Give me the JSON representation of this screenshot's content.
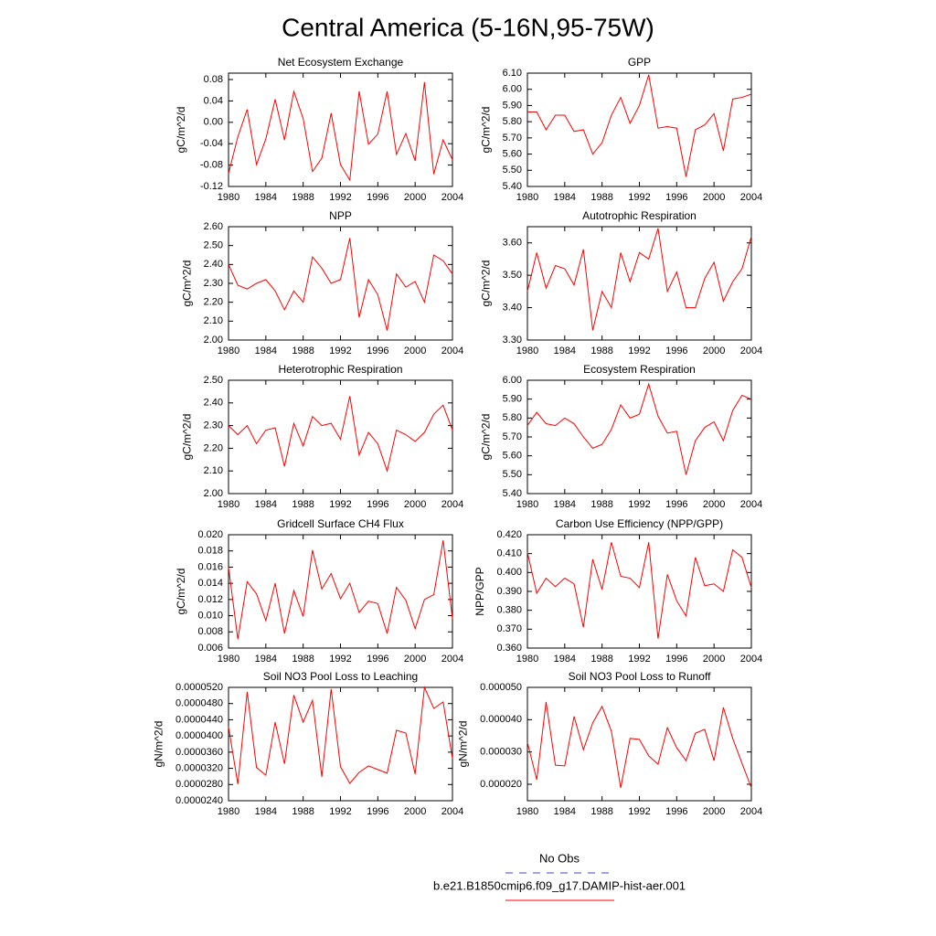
{
  "title": "Central America (5-16N,95-75W)",
  "legend": [
    {
      "name": "No Obs",
      "color": "#4444cc",
      "dashed": true
    },
    {
      "name": "b.e21.B1850cmip6.f09_g17.DAMIP-hist-aer.001",
      "color": "#ff0000",
      "dashed": false
    }
  ],
  "chart_data": [
    {
      "type": "line",
      "title": "Net Ecosystem Exchange",
      "ylabel": "gC/m^2/d",
      "color": "#ff0000",
      "x": [
        1980,
        1981,
        1982,
        1983,
        1984,
        1985,
        1986,
        1987,
        1988,
        1989,
        1990,
        1991,
        1992,
        1993,
        1994,
        1995,
        1996,
        1997,
        1998,
        1999,
        2000,
        2001,
        2002,
        2003,
        2004
      ],
      "values": [
        -0.096,
        -0.027,
        0.024,
        -0.079,
        -0.031,
        0.043,
        -0.033,
        0.058,
        0.007,
        -0.092,
        -0.067,
        0.017,
        -0.079,
        -0.108,
        0.058,
        -0.041,
        -0.022,
        0.058,
        -0.06,
        -0.021,
        -0.072,
        0.075,
        -0.097,
        -0.033,
        -0.07
      ],
      "xlim": [
        1980,
        2004
      ],
      "xticks": [
        1980,
        1984,
        1988,
        1992,
        1996,
        2000,
        2004
      ],
      "ylim": [
        -0.12,
        0.092
      ],
      "yticks": [
        -0.12,
        -0.08,
        -0.04,
        {
          "value": 0,
          "label": "0.00"
        },
        0.04,
        0.08
      ]
    },
    {
      "type": "line",
      "title": "GPP",
      "ylabel": "gC/m^2/d",
      "color": "#ff0000",
      "x": [
        1980,
        1981,
        1982,
        1983,
        1984,
        1985,
        1986,
        1987,
        1988,
        1989,
        1990,
        1991,
        1992,
        1993,
        1994,
        1995,
        1996,
        1997,
        1998,
        1999,
        2000,
        2001,
        2002,
        2003,
        2004
      ],
      "values": [
        5.86,
        5.86,
        5.75,
        5.84,
        5.84,
        5.74,
        5.75,
        5.6,
        5.67,
        5.84,
        5.95,
        5.79,
        5.9,
        6.09,
        5.76,
        5.77,
        5.76,
        5.46,
        5.75,
        5.78,
        5.85,
        5.62,
        5.94,
        5.95,
        5.97
      ],
      "xlim": [
        1980,
        2004
      ],
      "xticks": [
        1980,
        1984,
        1988,
        1992,
        1996,
        2000,
        2004
      ],
      "ylim": [
        5.4,
        6.1
      ],
      "yticks": [
        {
          "value": 5.4,
          "label": "5.40"
        },
        {
          "value": 5.5,
          "label": "5.50"
        },
        {
          "value": 5.6,
          "label": "5.60"
        },
        {
          "value": 5.7,
          "label": "5.70"
        },
        {
          "value": 5.8,
          "label": "5.80"
        },
        {
          "value": 5.9,
          "label": "5.90"
        },
        {
          "value": 6,
          "label": "6.00"
        },
        {
          "value": 6.1,
          "label": "6.10"
        }
      ]
    },
    {
      "type": "line",
      "title": "NPP",
      "ylabel": "gC/m^2/d",
      "color": "#ff0000",
      "x": [
        1980,
        1981,
        1982,
        1983,
        1984,
        1985,
        1986,
        1987,
        1988,
        1989,
        1990,
        1991,
        1992,
        1993,
        1994,
        1995,
        1996,
        1997,
        1998,
        1999,
        2000,
        2001,
        2002,
        2003,
        2004
      ],
      "values": [
        2.4,
        2.29,
        2.27,
        2.3,
        2.32,
        2.26,
        2.16,
        2.26,
        2.2,
        2.44,
        2.38,
        2.3,
        2.32,
        2.54,
        2.12,
        2.32,
        2.24,
        2.05,
        2.35,
        2.28,
        2.31,
        2.2,
        2.45,
        2.42,
        2.35
      ],
      "xlim": [
        1980,
        2004
      ],
      "xticks": [
        1980,
        1984,
        1988,
        1992,
        1996,
        2000,
        2004
      ],
      "ylim": [
        2.0,
        2.6
      ],
      "yticks": [
        {
          "value": 2,
          "label": "2.00"
        },
        {
          "value": 2.1,
          "label": "2.10"
        },
        {
          "value": 2.2,
          "label": "2.20"
        },
        {
          "value": 2.3,
          "label": "2.30"
        },
        {
          "value": 2.4,
          "label": "2.40"
        },
        {
          "value": 2.5,
          "label": "2.50"
        },
        {
          "value": 2.6,
          "label": "2.60"
        }
      ]
    },
    {
      "type": "line",
      "title": "Autotrophic Respiration",
      "ylabel": "gC/m^2/d",
      "color": "#ff0000",
      "x": [
        1980,
        1981,
        1982,
        1983,
        1984,
        1985,
        1986,
        1987,
        1988,
        1989,
        1990,
        1991,
        1992,
        1993,
        1994,
        1995,
        1996,
        1997,
        1998,
        1999,
        2000,
        2001,
        2002,
        2003,
        2004
      ],
      "values": [
        3.45,
        3.57,
        3.46,
        3.53,
        3.52,
        3.47,
        3.58,
        3.33,
        3.45,
        3.4,
        3.57,
        3.48,
        3.57,
        3.55,
        3.645,
        3.45,
        3.51,
        3.4,
        3.4,
        3.49,
        3.54,
        3.42,
        3.48,
        3.52,
        3.62
      ],
      "xlim": [
        1980,
        2004
      ],
      "xticks": [
        1980,
        1984,
        1988,
        1992,
        1996,
        2000,
        2004
      ],
      "ylim": [
        3.3,
        3.65
      ],
      "yticks": [
        {
          "value": 3.3,
          "label": "3.30"
        },
        {
          "value": 3.4,
          "label": "3.40"
        },
        {
          "value": 3.5,
          "label": "3.50"
        },
        {
          "value": 3.6,
          "label": "3.60"
        }
      ]
    },
    {
      "type": "line",
      "title": "Heterotrophic Respiration",
      "ylabel": "gC/m^2/d",
      "color": "#ff0000",
      "x": [
        1980,
        1981,
        1982,
        1983,
        1984,
        1985,
        1986,
        1987,
        1988,
        1989,
        1990,
        1991,
        1992,
        1993,
        1994,
        1995,
        1996,
        1997,
        1998,
        1999,
        2000,
        2001,
        2002,
        2003,
        2004
      ],
      "values": [
        2.3,
        2.26,
        2.3,
        2.22,
        2.28,
        2.29,
        2.12,
        2.31,
        2.21,
        2.34,
        2.3,
        2.31,
        2.24,
        2.43,
        2.17,
        2.27,
        2.22,
        2.1,
        2.28,
        2.26,
        2.23,
        2.27,
        2.35,
        2.39,
        2.28
      ],
      "xlim": [
        1980,
        2004
      ],
      "xticks": [
        1980,
        1984,
        1988,
        1992,
        1996,
        2000,
        2004
      ],
      "ylim": [
        2.0,
        2.5
      ],
      "yticks": [
        {
          "value": 2,
          "label": "2.00"
        },
        {
          "value": 2.1,
          "label": "2.10"
        },
        {
          "value": 2.2,
          "label": "2.20"
        },
        {
          "value": 2.3,
          "label": "2.30"
        },
        {
          "value": 2.4,
          "label": "2.40"
        },
        {
          "value": 2.5,
          "label": "2.50"
        }
      ]
    },
    {
      "type": "line",
      "title": "Ecosystem Respiration",
      "ylabel": "gC/m^2/d",
      "color": "#ff0000",
      "x": [
        1980,
        1981,
        1982,
        1983,
        1984,
        1985,
        1986,
        1987,
        1988,
        1989,
        1990,
        1991,
        1992,
        1993,
        1994,
        1995,
        1996,
        1997,
        1998,
        1999,
        2000,
        2001,
        2002,
        2003,
        2004
      ],
      "values": [
        5.76,
        5.83,
        5.77,
        5.76,
        5.8,
        5.77,
        5.7,
        5.64,
        5.66,
        5.74,
        5.87,
        5.8,
        5.82,
        5.98,
        5.81,
        5.72,
        5.73,
        5.5,
        5.68,
        5.75,
        5.78,
        5.68,
        5.84,
        5.92,
        5.9
      ],
      "xlim": [
        1980,
        2004
      ],
      "xticks": [
        1980,
        1984,
        1988,
        1992,
        1996,
        2000,
        2004
      ],
      "ylim": [
        5.4,
        6.0
      ],
      "yticks": [
        {
          "value": 5.4,
          "label": "5.40"
        },
        {
          "value": 5.5,
          "label": "5.50"
        },
        {
          "value": 5.6,
          "label": "5.60"
        },
        {
          "value": 5.7,
          "label": "5.70"
        },
        {
          "value": 5.8,
          "label": "5.80"
        },
        {
          "value": 5.9,
          "label": "5.90"
        },
        {
          "value": 6,
          "label": "6.00"
        }
      ]
    },
    {
      "type": "line",
      "title": "Gridcell Surface CH4 Flux",
      "ylabel": "gC/m^2/d",
      "color": "#ff0000",
      "x": [
        1980,
        1981,
        1982,
        1983,
        1984,
        1985,
        1986,
        1987,
        1988,
        1989,
        1990,
        1991,
        1992,
        1993,
        1994,
        1995,
        1996,
        1997,
        1998,
        1999,
        2000,
        2001,
        2002,
        2003,
        2004
      ],
      "values": [
        0.016,
        0.0071,
        0.0142,
        0.0127,
        0.0094,
        0.014,
        0.0078,
        0.0131,
        0.0099,
        0.0181,
        0.0133,
        0.0152,
        0.0121,
        0.014,
        0.0104,
        0.0118,
        0.0115,
        0.0078,
        0.0135,
        0.0119,
        0.0084,
        0.012,
        0.0126,
        0.0193,
        0.0096
      ],
      "xlim": [
        1980,
        2004
      ],
      "xticks": [
        1980,
        1984,
        1988,
        1992,
        1996,
        2000,
        2004
      ],
      "ylim": [
        0.006,
        0.02
      ],
      "yticks": [
        0.006,
        0.008,
        {
          "value": 0.01,
          "label": "0.010"
        },
        0.012,
        0.014,
        0.016,
        0.018,
        {
          "value": 0.02,
          "label": "0.020"
        }
      ]
    },
    {
      "type": "line",
      "title": "Carbon Use Efficiency (NPP/GPP)",
      "ylabel": "NPP/GPP",
      "color": "#ff0000",
      "x": [
        1980,
        1981,
        1982,
        1983,
        1984,
        1985,
        1986,
        1987,
        1988,
        1989,
        1990,
        1991,
        1992,
        1993,
        1994,
        1995,
        1996,
        1997,
        1998,
        1999,
        2000,
        2001,
        2002,
        2003,
        2004
      ],
      "values": [
        0.4107,
        0.389,
        0.397,
        0.3925,
        0.397,
        0.394,
        0.371,
        0.407,
        0.391,
        0.416,
        0.398,
        0.397,
        0.392,
        0.416,
        0.365,
        0.399,
        0.385,
        0.377,
        0.408,
        0.393,
        0.394,
        0.39,
        0.412,
        0.408,
        0.392
      ],
      "xlim": [
        1980,
        2004
      ],
      "xticks": [
        1980,
        1984,
        1988,
        1992,
        1996,
        2000,
        2004
      ],
      "ylim": [
        0.36,
        0.42
      ],
      "yticks": [
        {
          "value": 0.36,
          "label": "0.360"
        },
        {
          "value": 0.37,
          "label": "0.370"
        },
        {
          "value": 0.38,
          "label": "0.380"
        },
        {
          "value": 0.39,
          "label": "0.390"
        },
        {
          "value": 0.4,
          "label": "0.400"
        },
        {
          "value": 0.41,
          "label": "0.410"
        },
        {
          "value": 0.42,
          "label": "0.420"
        }
      ]
    },
    {
      "type": "line",
      "title": "Soil NO3 Pool Loss to Leaching",
      "ylabel": "gN/m^2/d",
      "color": "#ff0000",
      "x": [
        1980,
        1981,
        1982,
        1983,
        1984,
        1985,
        1986,
        1987,
        1988,
        1989,
        1990,
        1991,
        1992,
        1993,
        1994,
        1995,
        1996,
        1997,
        1998,
        1999,
        2000,
        2001,
        2002,
        2003,
        2004
      ],
      "values": [
        4.23e-05,
        2.81e-05,
        5.09e-05,
        3.22e-05,
        3.03e-05,
        4.34e-05,
        3.31e-05,
        5.01e-05,
        4.34e-05,
        4.88e-05,
        2.99e-05,
        5.16e-05,
        3.24e-05,
        2.83e-05,
        3.1e-05,
        3.26e-05,
        3.17e-05,
        3.08e-05,
        4.14e-05,
        4.07e-05,
        3.06e-05,
        5.2e-05,
        4.68e-05,
        4.84e-05,
        3.44e-05
      ],
      "xlim": [
        1980,
        2004
      ],
      "xticks": [
        1980,
        1984,
        1988,
        1992,
        1996,
        2000,
        2004
      ],
      "ylim": [
        2.4e-05,
        5.2e-05
      ],
      "yticks": [
        {
          "value": 2.4e-05,
          "label": "0.0000240"
        },
        {
          "value": 2.8e-05,
          "label": "0.0000280"
        },
        {
          "value": 3.2e-05,
          "label": "0.0000320"
        },
        {
          "value": 3.6e-05,
          "label": "0.0000360"
        },
        {
          "value": 4e-05,
          "label": "0.0000400"
        },
        {
          "value": 4.4e-05,
          "label": "0.0000440"
        },
        {
          "value": 4.8e-05,
          "label": "0.0000480"
        },
        {
          "value": 5.2e-05,
          "label": "0.0000520"
        }
      ]
    },
    {
      "type": "line",
      "title": "Soil NO3 Pool Loss to Runoff",
      "ylabel": "gN/m^2/d",
      "color": "#ff0000",
      "x": [
        1980,
        1981,
        1982,
        1983,
        1984,
        1985,
        1986,
        1987,
        1988,
        1989,
        1990,
        1991,
        1992,
        1993,
        1994,
        1995,
        1996,
        1997,
        1998,
        1999,
        2000,
        2001,
        2002,
        2003,
        2004
      ],
      "values": [
        3.3e-05,
        2.14e-05,
        4.55e-05,
        2.59e-05,
        2.57e-05,
        4.1e-05,
        3.07e-05,
        3.9e-05,
        4.41e-05,
        3.64e-05,
        1.89e-05,
        3.42e-05,
        3.39e-05,
        2.88e-05,
        2.62e-05,
        3.75e-05,
        3.13e-05,
        2.73e-05,
        3.58e-05,
        3.7e-05,
        2.73e-05,
        4.38e-05,
        3.42e-05,
        2.65e-05,
        1.89e-05
      ],
      "xlim": [
        1980,
        2004
      ],
      "xticks": [
        1980,
        1984,
        1988,
        1992,
        1996,
        2000,
        2004
      ],
      "ylim": [
        1.49e-05,
        5e-05
      ],
      "yticks": [
        {
          "value": 2e-05,
          "label": "0.000020"
        },
        {
          "value": 3e-05,
          "label": "0.000030"
        },
        {
          "value": 4e-05,
          "label": "0.000040"
        },
        {
          "value": 5e-05,
          "label": "0.000050"
        }
      ]
    }
  ]
}
